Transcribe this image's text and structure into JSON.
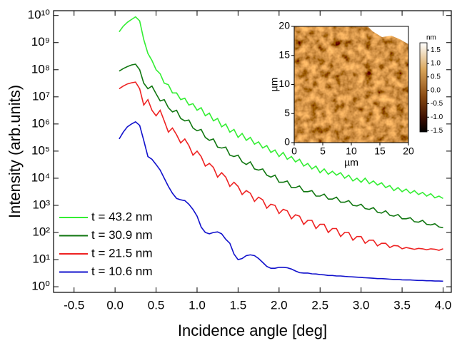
{
  "chart_data": [
    {
      "type": "line",
      "xlabel": "Incidence angle [deg]",
      "ylabel": "Intensity (arb.units)",
      "log_y": true,
      "grid": false,
      "legend": "lower left",
      "xlim": [
        -0.75,
        4.1
      ],
      "ylim": [
        0.62,
        15000000000.0
      ],
      "xticks": [
        -0.5,
        {
          "value": 0,
          "label": "0.0"
        },
        0.5,
        {
          "value": 1,
          "label": "1.0"
        },
        1.5,
        {
          "value": 2,
          "label": "2.0"
        },
        2.5,
        {
          "value": 3,
          "label": "3.0"
        },
        3.5,
        {
          "value": 4,
          "label": "4.0"
        }
      ],
      "yticks": [
        {
          "value": 1,
          "label": "10⁰"
        },
        {
          "value": 10,
          "label": "10¹"
        },
        {
          "value": 100,
          "label": "10²"
        },
        {
          "value": 1000,
          "label": "10³"
        },
        {
          "value": 10000,
          "label": "10⁴"
        },
        {
          "value": 100000,
          "label": "10⁵"
        },
        {
          "value": 1000000,
          "label": "10⁶"
        },
        {
          "value": 10000000,
          "label": "10⁷"
        },
        {
          "value": 100000000,
          "label": "10⁸"
        },
        {
          "value": 1000000000,
          "label": "10⁹"
        },
        {
          "value": 10000000000,
          "label": "10¹⁰"
        }
      ],
      "x": [
        0.05,
        0.1,
        0.15,
        0.2,
        0.25,
        0.3,
        0.35,
        0.4,
        0.45,
        0.5,
        0.55,
        0.6,
        0.65,
        0.7,
        0.75,
        0.8,
        0.85,
        0.9,
        0.95,
        1.0,
        1.05,
        1.1,
        1.15,
        1.2,
        1.25,
        1.3,
        1.35,
        1.4,
        1.45,
        1.5,
        1.55,
        1.6,
        1.65,
        1.7,
        1.75,
        1.8,
        1.85,
        1.9,
        1.95,
        2.0,
        2.05,
        2.1,
        2.15,
        2.2,
        2.25,
        2.3,
        2.35,
        2.4,
        2.45,
        2.5,
        2.55,
        2.6,
        2.65,
        2.7,
        2.75,
        2.8,
        2.85,
        2.9,
        2.95,
        3.0,
        3.05,
        3.1,
        3.15,
        3.2,
        3.25,
        3.3,
        3.35,
        3.4,
        3.45,
        3.5,
        3.55,
        3.6,
        3.65,
        3.7,
        3.75,
        3.8,
        3.85,
        3.9,
        3.95,
        4.0
      ],
      "series": [
        {
          "name": "t = 43.2 nm",
          "color": "#33ee33",
          "values": [
            2500000000.0,
            4000000000.0,
            5600000000.0,
            7100000000.0,
            8900000000.0,
            6300000000.0,
            1300000000.0,
            400000000.0,
            220000000.0,
            100000000.0,
            71000000.0,
            32000000.0,
            28000000.0,
            14000000.0,
            14000000.0,
            7900000.0,
            8900000.0,
            5000000.0,
            5600000.0,
            3200000.0,
            4000000.0,
            2000000.0,
            2500000.0,
            1300000.0,
            1600000.0,
            790000.0,
            1000000.0,
            500000.0,
            630000.0,
            320000.0,
            450000.0,
            250000.0,
            320000.0,
            180000.0,
            220000.0,
            130000.0,
            160000.0,
            89000.0,
            110000.0,
            63000.0,
            89000.0,
            50000.0,
            63000.0,
            40000.0,
            50000.0,
            28000.0,
            35000.0,
            22000.0,
            28000.0,
            16000.0,
            22000.0,
            14000.0,
            18000.0,
            13000.0,
            16000.0,
            10000.0,
            13000.0,
            7900.0,
            10000.0,
            7100.0,
            10000.0,
            6300.0,
            7900.0,
            5600.0,
            6800.0,
            4500.0,
            5400.0,
            3500.0,
            4500.0,
            3200.0,
            4000.0,
            2800.0,
            3500.0,
            2500.0,
            3000.0,
            2200.0,
            2700.0,
            1900.0,
            2200.0,
            1800.0
          ]
        },
        {
          "name": "t = 30.9 nm",
          "color": "#117711",
          "values": [
            89000000.0,
            110000000.0,
            130000000.0,
            150000000.0,
            160000000.0,
            100000000.0,
            32000000.0,
            20000000.0,
            25000000.0,
            13000000.0,
            7100000.0,
            7900000.0,
            4000000.0,
            2800000.0,
            3200000.0,
            1600000.0,
            1300000.0,
            1400000.0,
            710000.0,
            560000.0,
            630000.0,
            320000.0,
            250000.0,
            280000.0,
            140000.0,
            130000.0,
            140000.0,
            71000.0,
            63000.0,
            71000.0,
            40000.0,
            32000.0,
            40000.0,
            22000.0,
            20000.0,
            22000.0,
            13000.0,
            11000.0,
            13000.0,
            7100.0,
            7100.0,
            7900.0,
            4500.0,
            4500.0,
            5200.0,
            3200.0,
            3200.0,
            3500.0,
            2200.0,
            2200.0,
            2600.0,
            1700.0,
            1700.0,
            2000.0,
            1300.0,
            1300.0,
            1500.0,
            1000.0,
            950,
            1100.0,
            760,
            710,
            830,
            560,
            520,
            630,
            430,
            400,
            460,
            320,
            320,
            350,
            250,
            240,
            280,
            200,
            190,
            210,
            160,
            150
          ]
        },
        {
          "name": "t = 21.5 nm",
          "color": "#ee2222",
          "values": [
            20000000.0,
            25000000.0,
            30000000.0,
            33000000.0,
            35000000.0,
            20000000.0,
            5000000.0,
            7900000.0,
            3200000.0,
            2000000.0,
            3200000.0,
            1300000.0,
            500000.0,
            710000.0,
            400000.0,
            200000.0,
            280000.0,
            160000.0,
            71000.0,
            100000.0,
            63000.0,
            28000.0,
            35000.0,
            25000.0,
            11000.0,
            16000.0,
            11000.0,
            5000.0,
            7100.0,
            5000.0,
            2500.0,
            3500.0,
            2800.0,
            1400.0,
            2000.0,
            1600.0,
            790,
            1100.0,
            1000.0,
            500,
            710,
            630,
            320,
            450,
            400,
            200,
            280,
            280,
            140,
            200,
            200,
            100,
            140,
            140,
            71,
            100,
            100,
            52,
            71,
            71,
            40,
            52,
            52,
            32,
            40,
            40,
            28,
            33,
            32,
            25,
            28,
            26,
            24,
            26,
            25,
            23,
            25,
            24,
            22,
            25
          ]
        },
        {
          "name": "t = 10.6 nm",
          "color": "#1111cc",
          "values": [
            280000.0,
            500000.0,
            790000.0,
            1000000.0,
            1200000.0,
            890000.0,
            250000.0,
            63000.0,
            50000.0,
            32000.0,
            20000.0,
            10000.0,
            5000.0,
            2800.0,
            1800.0,
            1600.0,
            1500.0,
            1100.0,
            710,
            400,
            160,
            100,
            89,
            100,
            105,
            89,
            56,
            40,
            16,
            10,
            11,
            14,
            15,
            14,
            11,
            7.9,
            5.6,
            4.8,
            4.8,
            5.2,
            5.2,
            5,
            4.5,
            3.8,
            3.3,
            3.2,
            3.2,
            3,
            2.95,
            2.8,
            2.75,
            2.6,
            2.6,
            2.5,
            2.5,
            2.4,
            2.35,
            2.3,
            2.25,
            2.2,
            2.15,
            2.1,
            2.05,
            2,
            2,
            1.95,
            1.9,
            1.85,
            1.85,
            1.8,
            1.78,
            1.78,
            1.74,
            1.7,
            1.7,
            1.66,
            1.66,
            1.62,
            1.62,
            1.6
          ]
        }
      ]
    },
    {
      "type": "heatmap",
      "xlabel": "µm",
      "ylabel": "µm",
      "xlim": [
        0,
        20
      ],
      "ylim": [
        0,
        20
      ],
      "xticks": [
        0,
        5,
        10,
        15,
        20
      ],
      "yticks": [
        0,
        5,
        10,
        15,
        20
      ],
      "colorbar": {
        "label": "nm",
        "lim": [
          -1.55,
          1.77
        ],
        "ticks": [
          1.5,
          {
            "value": 1,
            "label": "1.0"
          },
          0.5,
          {
            "value": 0,
            "label": "0.0"
          },
          -0.5,
          {
            "value": -1,
            "label": "-1.0"
          },
          -1.5
        ]
      }
    }
  ]
}
